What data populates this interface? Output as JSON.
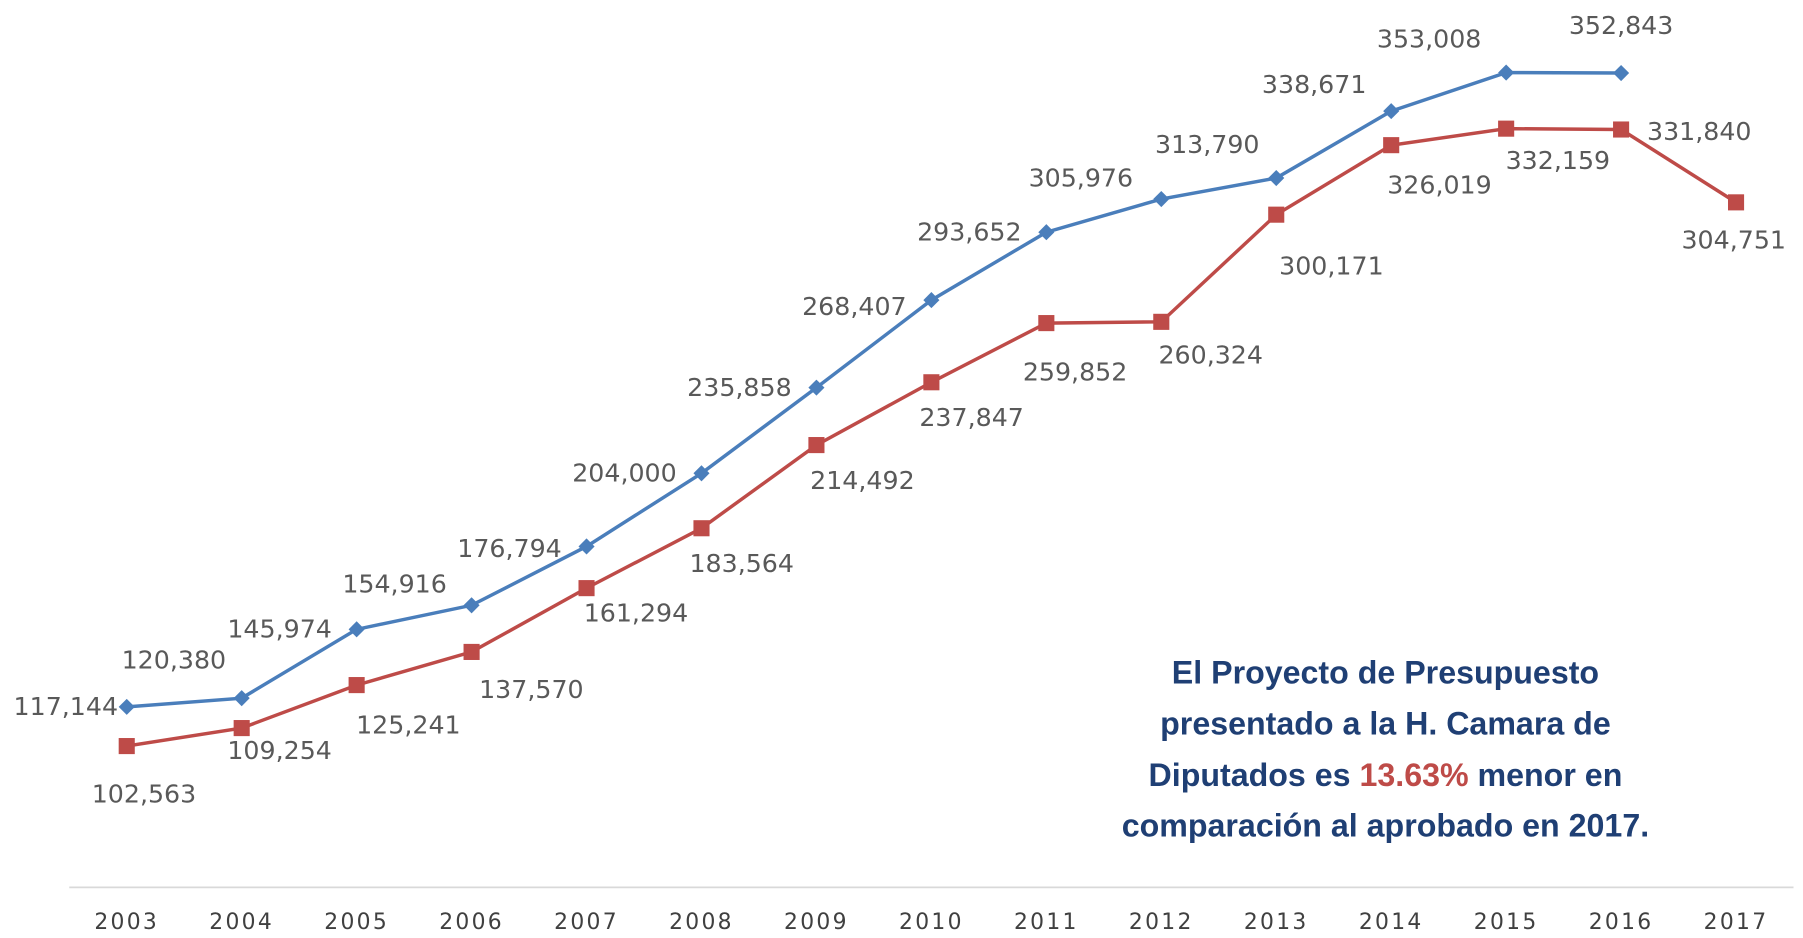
{
  "chart_data": {
    "type": "line",
    "categories": [
      "2003",
      "2004",
      "2005",
      "2006",
      "2007",
      "2008",
      "2009",
      "2010",
      "2011",
      "2012",
      "2013",
      "2014",
      "2015",
      "2016",
      "2017"
    ],
    "series": [
      {
        "color": "#4a7ebb",
        "marker": "diamond",
        "values": [
          117144,
          120380,
          145974,
          154916,
          176794,
          204000,
          235858,
          268407,
          293652,
          305976,
          313790,
          338671,
          353008,
          352843,
          null
        ],
        "value_labels": [
          "117,144",
          "120,380",
          "145,974",
          "154,916",
          "176,794",
          "204,000",
          "235,858",
          "268,407",
          "293,652",
          "305,976",
          "313,790",
          "338,671",
          "353,008",
          "352,843",
          null
        ]
      },
      {
        "color": "#be4b48",
        "marker": "square",
        "values": [
          102563,
          109254,
          125241,
          137570,
          161294,
          183564,
          214492,
          237847,
          259852,
          260324,
          300171,
          326019,
          332159,
          331840,
          304751
        ],
        "value_labels": [
          "102,563",
          "109,254",
          "125,241",
          "137,570",
          "161,294",
          "183,564",
          "214,492",
          "237,847",
          "259,852",
          "260,324",
          "300,171",
          "326,019",
          "332,159",
          "331,840",
          "304,751"
        ]
      }
    ],
    "ylim": [
      50000,
      380000
    ],
    "annotation": {
      "color": "#1f3f74",
      "highlight_color": "#be4b48",
      "lines": [
        "El Proyecto de Presupuesto",
        "presentado a la H. Camara de",
        [
          "Diputados es ",
          "13.63%",
          " menor en"
        ],
        "comparación al aprobado en 2017."
      ]
    }
  }
}
